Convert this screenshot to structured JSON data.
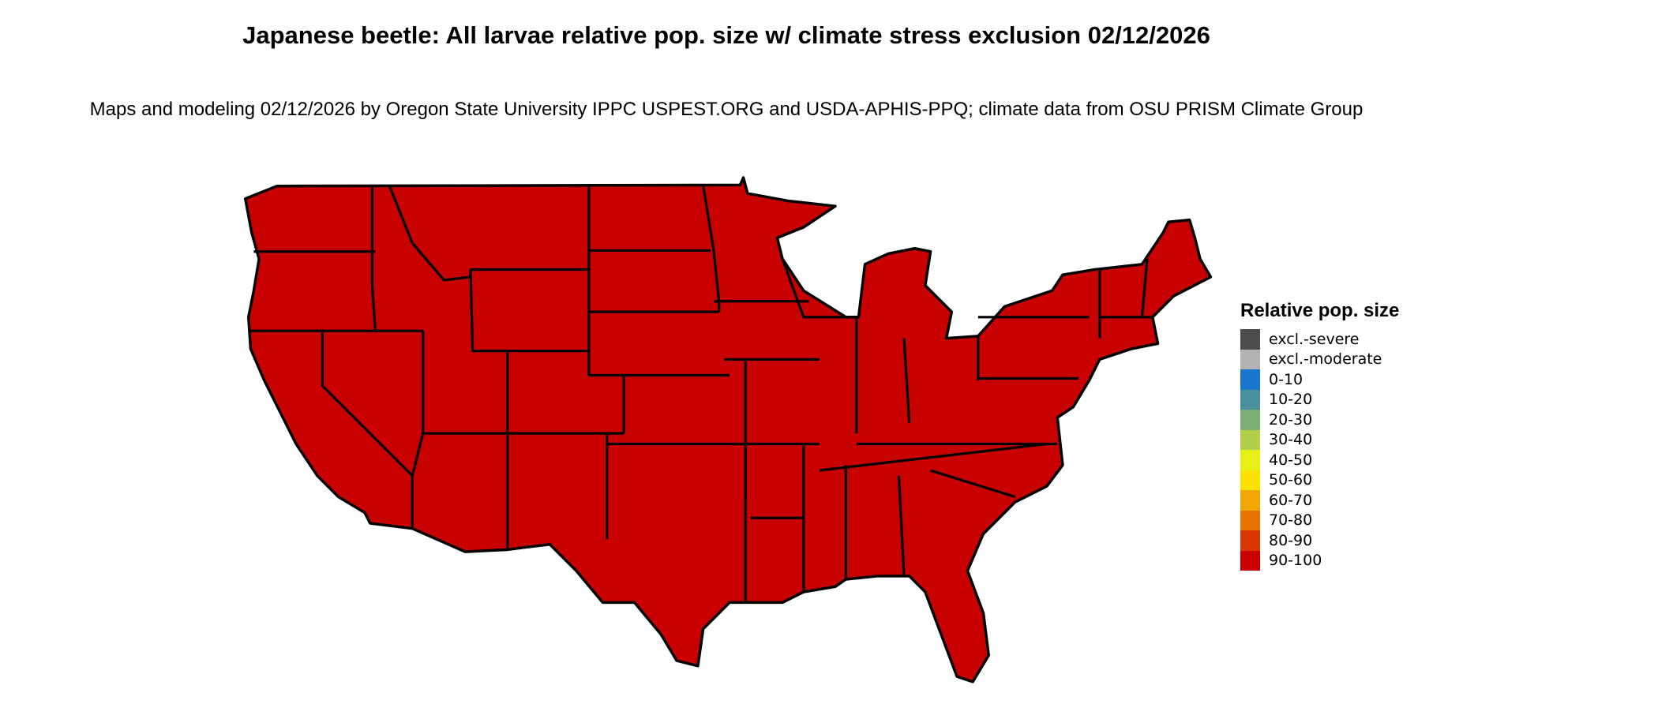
{
  "title": "Japanese beetle: All larvae relative pop. size w/ climate stress exclusion 02/12/2026",
  "subtitle": "Maps and modeling 02/12/2026 by Oregon State University IPPC USPEST.ORG and USDA-APHIS-PPQ; climate data from OSU PRISM Climate Group",
  "map": {
    "region": "Contiguous United States",
    "fill_color": "#c80000",
    "fill_category": "90-100",
    "border_color": "#000000"
  },
  "legend": {
    "title": "Relative pop. size",
    "items": [
      {
        "label": "excl.-severe",
        "color": "#4d4d4d"
      },
      {
        "label": "excl.-moderate",
        "color": "#b3b3b3"
      },
      {
        "label": "0-10",
        "color": "#1a75cf"
      },
      {
        "label": "10-20",
        "color": "#4a8f9c"
      },
      {
        "label": "20-30",
        "color": "#7daf75"
      },
      {
        "label": "30-40",
        "color": "#b2d04a"
      },
      {
        "label": "40-50",
        "color": "#e6f016"
      },
      {
        "label": "50-60",
        "color": "#fae100"
      },
      {
        "label": "60-70",
        "color": "#f0a800"
      },
      {
        "label": "70-80",
        "color": "#e67300"
      },
      {
        "label": "80-90",
        "color": "#d93600"
      },
      {
        "label": "90-100",
        "color": "#cc0000"
      }
    ]
  }
}
